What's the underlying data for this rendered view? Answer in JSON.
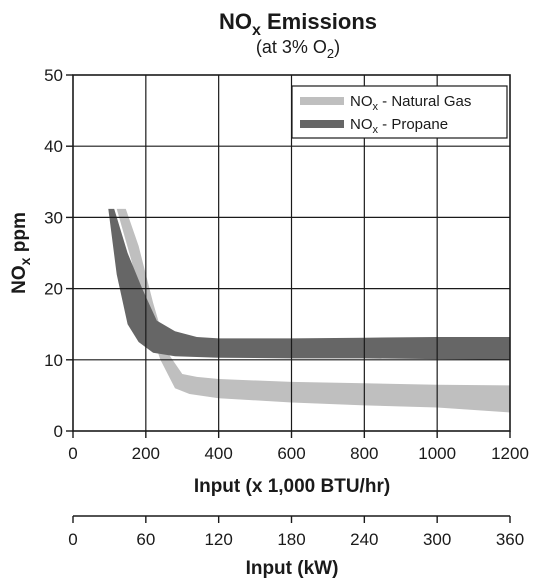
{
  "chart_data": {
    "type": "area",
    "title": {
      "main": "NO",
      "sub": "x",
      "tail": " Emissions"
    },
    "subtitle": {
      "main": "(at 3% O",
      "sub": "2",
      "tail": ")"
    },
    "ylabel": {
      "main": "NO",
      "sub": "x",
      "tail": " ppm"
    },
    "xlabel": "Input (x 1,000 BTU/hr)",
    "x2label": "Input (kW)",
    "xlim": [
      0,
      1200
    ],
    "ylim": [
      0,
      50
    ],
    "xticks": [
      "0",
      "200",
      "400",
      "600",
      "800",
      "1000",
      "1200"
    ],
    "yticks": [
      "0",
      "10",
      "20",
      "30",
      "40",
      "50"
    ],
    "x2ticks": [
      "0",
      "60",
      "120",
      "180",
      "240",
      "300",
      "360"
    ],
    "x2lim": [
      0,
      360
    ],
    "grid": true,
    "legend_position": "top-right",
    "series": [
      {
        "label_main": "NO",
        "label_sub": "x",
        "label_tail": " - Natural Gas",
        "color": "#bfbfbf",
        "upper": [
          [
            145,
            31.2
          ],
          [
            180,
            26
          ],
          [
            220,
            18
          ],
          [
            260,
            11
          ],
          [
            300,
            8
          ],
          [
            340,
            7.6
          ],
          [
            400,
            7.3
          ],
          [
            600,
            6.9
          ],
          [
            800,
            6.7
          ],
          [
            1000,
            6.5
          ],
          [
            1200,
            6.4
          ]
        ],
        "lower": [
          [
            120,
            31.2
          ],
          [
            160,
            24
          ],
          [
            200,
            16
          ],
          [
            240,
            10
          ],
          [
            280,
            6
          ],
          [
            320,
            5.2
          ],
          [
            400,
            4.6
          ],
          [
            600,
            4
          ],
          [
            800,
            3.6
          ],
          [
            1000,
            3.3
          ],
          [
            1200,
            2.6
          ]
        ]
      },
      {
        "label_main": "NO",
        "label_sub": "x",
        "label_tail": " - Propane",
        "color": "#666666",
        "upper": [
          [
            113,
            31.2
          ],
          [
            150,
            25
          ],
          [
            190,
            20
          ],
          [
            230,
            15.5
          ],
          [
            280,
            14
          ],
          [
            340,
            13.2
          ],
          [
            400,
            13
          ],
          [
            600,
            13
          ],
          [
            800,
            13.1
          ],
          [
            1000,
            13.2
          ],
          [
            1200,
            13.2
          ]
        ],
        "lower": [
          [
            97,
            31.2
          ],
          [
            120,
            22
          ],
          [
            150,
            15
          ],
          [
            180,
            12.5
          ],
          [
            220,
            11
          ],
          [
            280,
            10.5
          ],
          [
            400,
            10.3
          ],
          [
            600,
            10.2
          ],
          [
            800,
            10.2
          ],
          [
            1000,
            10.1
          ],
          [
            1200,
            10
          ]
        ]
      }
    ]
  }
}
